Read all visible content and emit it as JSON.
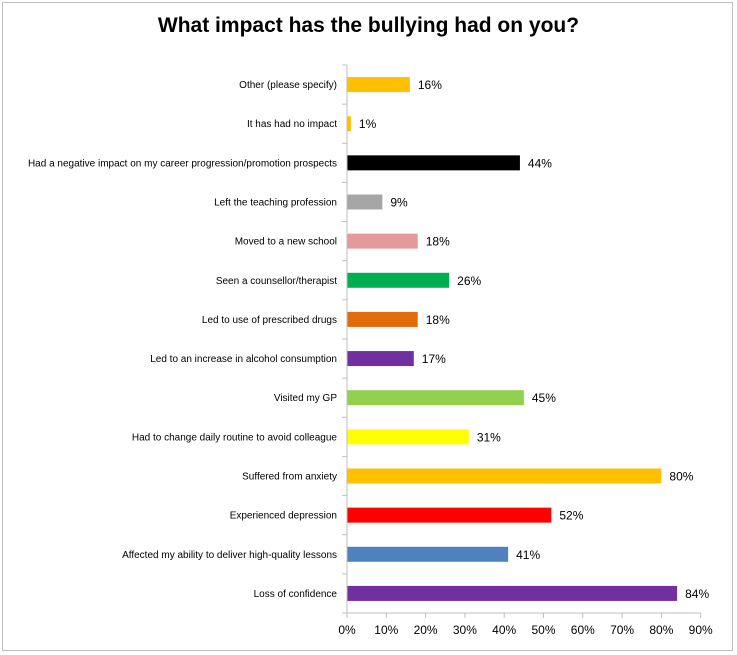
{
  "chart_data": {
    "type": "bar",
    "orientation": "horizontal",
    "title": "What impact has the bullying had on you?",
    "xlabel": "",
    "ylabel": "",
    "categories": [
      "Other (please specify)",
      "It has had no impact",
      "Had a negative impact on my career progression/promotion prospects",
      "Left the teaching profession",
      "Moved to a new school",
      "Seen a counsellor/therapist",
      "Led to use of prescribed drugs",
      "Led to an increase in alcohol consumption",
      "Visited my GP",
      "Had to change daily routine to avoid colleague",
      "Suffered from anxiety",
      "Experienced depression",
      "Affected my ability to deliver high-quality lessons",
      "Loss of confidence"
    ],
    "values": [
      16,
      1,
      44,
      9,
      18,
      26,
      18,
      17,
      45,
      31,
      80,
      52,
      41,
      84
    ],
    "data_labels": [
      "16%",
      "1%",
      "44%",
      "9%",
      "18%",
      "26%",
      "18%",
      "17%",
      "45%",
      "31%",
      "80%",
      "52%",
      "41%",
      "84%"
    ],
    "colors": [
      "#ffc000",
      "#ffc000",
      "#000000",
      "#a6a6a6",
      "#e6999a",
      "#00b050",
      "#e36c0a",
      "#7030a0",
      "#92d050",
      "#ffff00",
      "#ffc000",
      "#ff0000",
      "#4f81bd",
      "#7030a0"
    ],
    "xlim": [
      0,
      90
    ],
    "xticks": [
      "0%",
      "10%",
      "20%",
      "30%",
      "40%",
      "50%",
      "60%",
      "70%",
      "80%",
      "90%"
    ],
    "grid": false,
    "legend": "none"
  }
}
